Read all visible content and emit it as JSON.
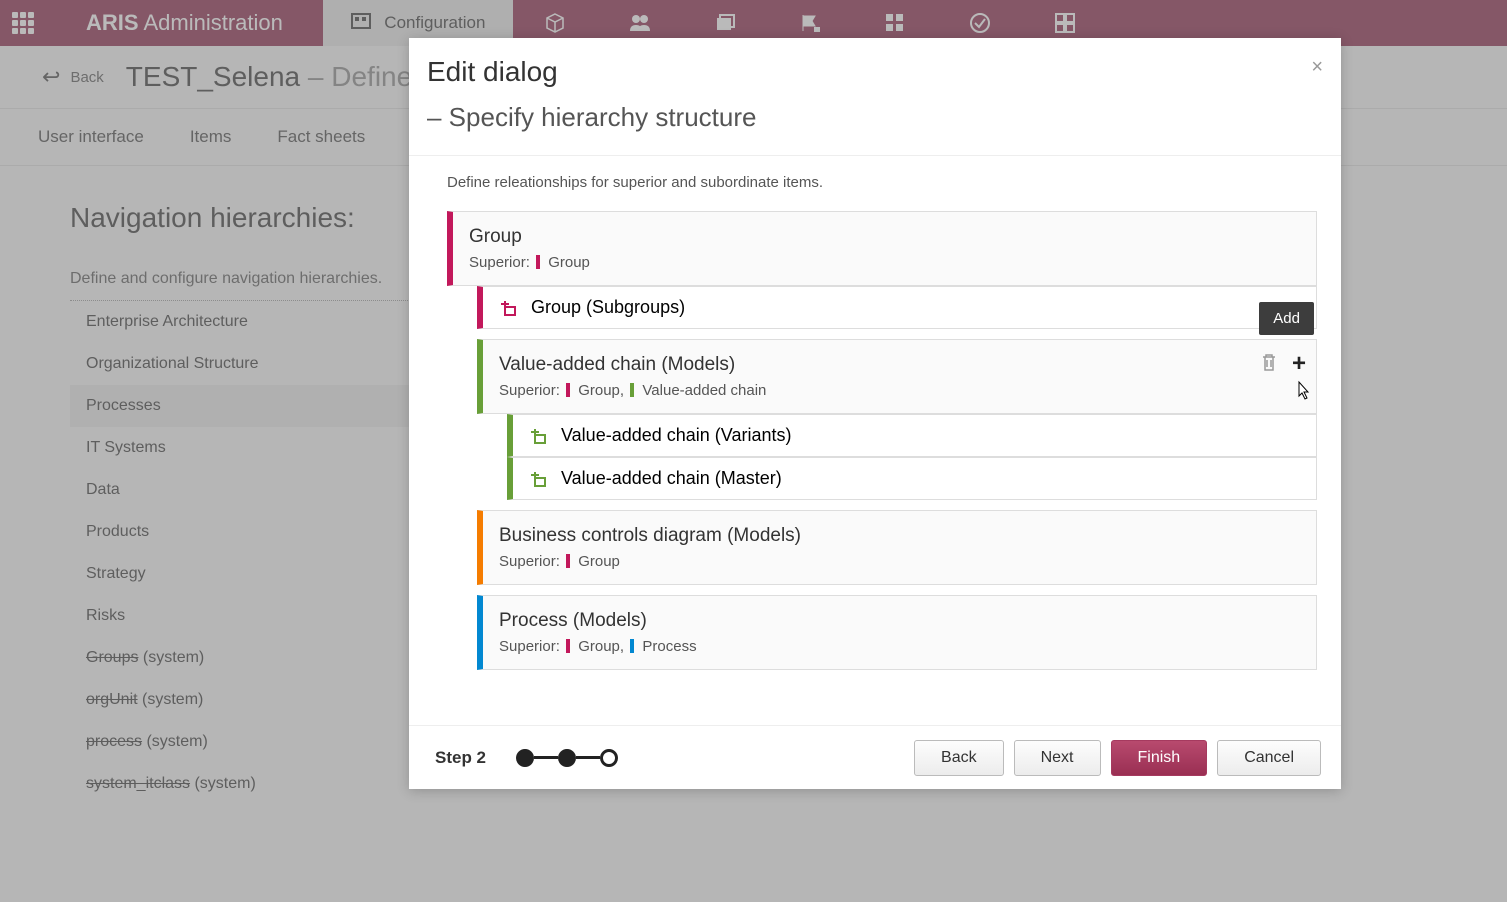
{
  "colors": {
    "brand": "#8a2548",
    "magenta": "#c2185b",
    "green": "#689f38",
    "orange": "#f57c00",
    "blue": "#0288d1",
    "tooltip": "#3d3d3d"
  },
  "topbar": {
    "brand_bold": "ARIS",
    "brand_rest": " Administration",
    "active_tab": "Configuration"
  },
  "breadcrumb": {
    "back": "Back",
    "title_main": "TEST_Selena",
    "title_sep": " – ",
    "title_sub": "Define n"
  },
  "tabs": [
    "User interface",
    "Items",
    "Fact sheets"
  ],
  "page": {
    "title": "Navigation hierarchies:",
    "desc": "Define and configure navigation hierarchies.",
    "items": [
      {
        "label": "Enterprise Architecture",
        "selected": false,
        "strike": false,
        "suffix": ""
      },
      {
        "label": "Organizational Structure",
        "selected": false,
        "strike": false,
        "suffix": ""
      },
      {
        "label": "Processes",
        "selected": true,
        "strike": false,
        "suffix": ""
      },
      {
        "label": "IT Systems",
        "selected": false,
        "strike": false,
        "suffix": ""
      },
      {
        "label": "Data",
        "selected": false,
        "strike": false,
        "suffix": ""
      },
      {
        "label": "Products",
        "selected": false,
        "strike": false,
        "suffix": ""
      },
      {
        "label": "Strategy",
        "selected": false,
        "strike": false,
        "suffix": ""
      },
      {
        "label": "Risks",
        "selected": false,
        "strike": false,
        "suffix": ""
      },
      {
        "label": "Groups",
        "selected": false,
        "strike": true,
        "suffix": " (system)"
      },
      {
        "label": "orgUnit",
        "selected": false,
        "strike": true,
        "suffix": " (system)"
      },
      {
        "label": "process",
        "selected": false,
        "strike": true,
        "suffix": " (system)"
      },
      {
        "label": "system_itclass",
        "selected": false,
        "strike": true,
        "suffix": " (system)"
      }
    ]
  },
  "dialog": {
    "h1": "Edit dialog",
    "h2": "– Specify hierarchy structure",
    "desc": "Define releationships for superior and subordinate items.",
    "tooltip": "Add",
    "step_label": "Step 2",
    "buttons": {
      "back": "Back",
      "next": "Next",
      "finish": "Finish",
      "cancel": "Cancel"
    }
  },
  "hierarchy": {
    "root": {
      "title": "Group",
      "color": "#c2185b",
      "superior_label": "Superior:",
      "superiors": [
        {
          "label": "Group",
          "color": "#c2185b"
        }
      ],
      "children": [
        {
          "title": "Group (Subgroups)",
          "color": "#c2185b",
          "leaf": true
        },
        {
          "title": "Value-added chain (Models)",
          "color": "#689f38",
          "superior_label": "Superior:",
          "superiors": [
            {
              "label": "Group,",
              "color": "#c2185b"
            },
            {
              "label": "Value-added chain",
              "color": "#689f38"
            }
          ],
          "show_actions": true,
          "children": [
            {
              "title": "Value-added chain (Variants)",
              "color": "#689f38",
              "leaf": true
            },
            {
              "title": "Value-added chain (Master)",
              "color": "#689f38",
              "leaf": true
            }
          ]
        },
        {
          "title": "Business controls diagram (Models)",
          "color": "#f57c00",
          "superior_label": "Superior:",
          "superiors": [
            {
              "label": "Group",
              "color": "#c2185b"
            }
          ]
        },
        {
          "title": "Process (Models)",
          "color": "#0288d1",
          "superior_label": "Superior:",
          "superiors": [
            {
              "label": "Group,",
              "color": "#c2185b"
            },
            {
              "label": "Process",
              "color": "#0288d1"
            }
          ]
        }
      ]
    }
  }
}
